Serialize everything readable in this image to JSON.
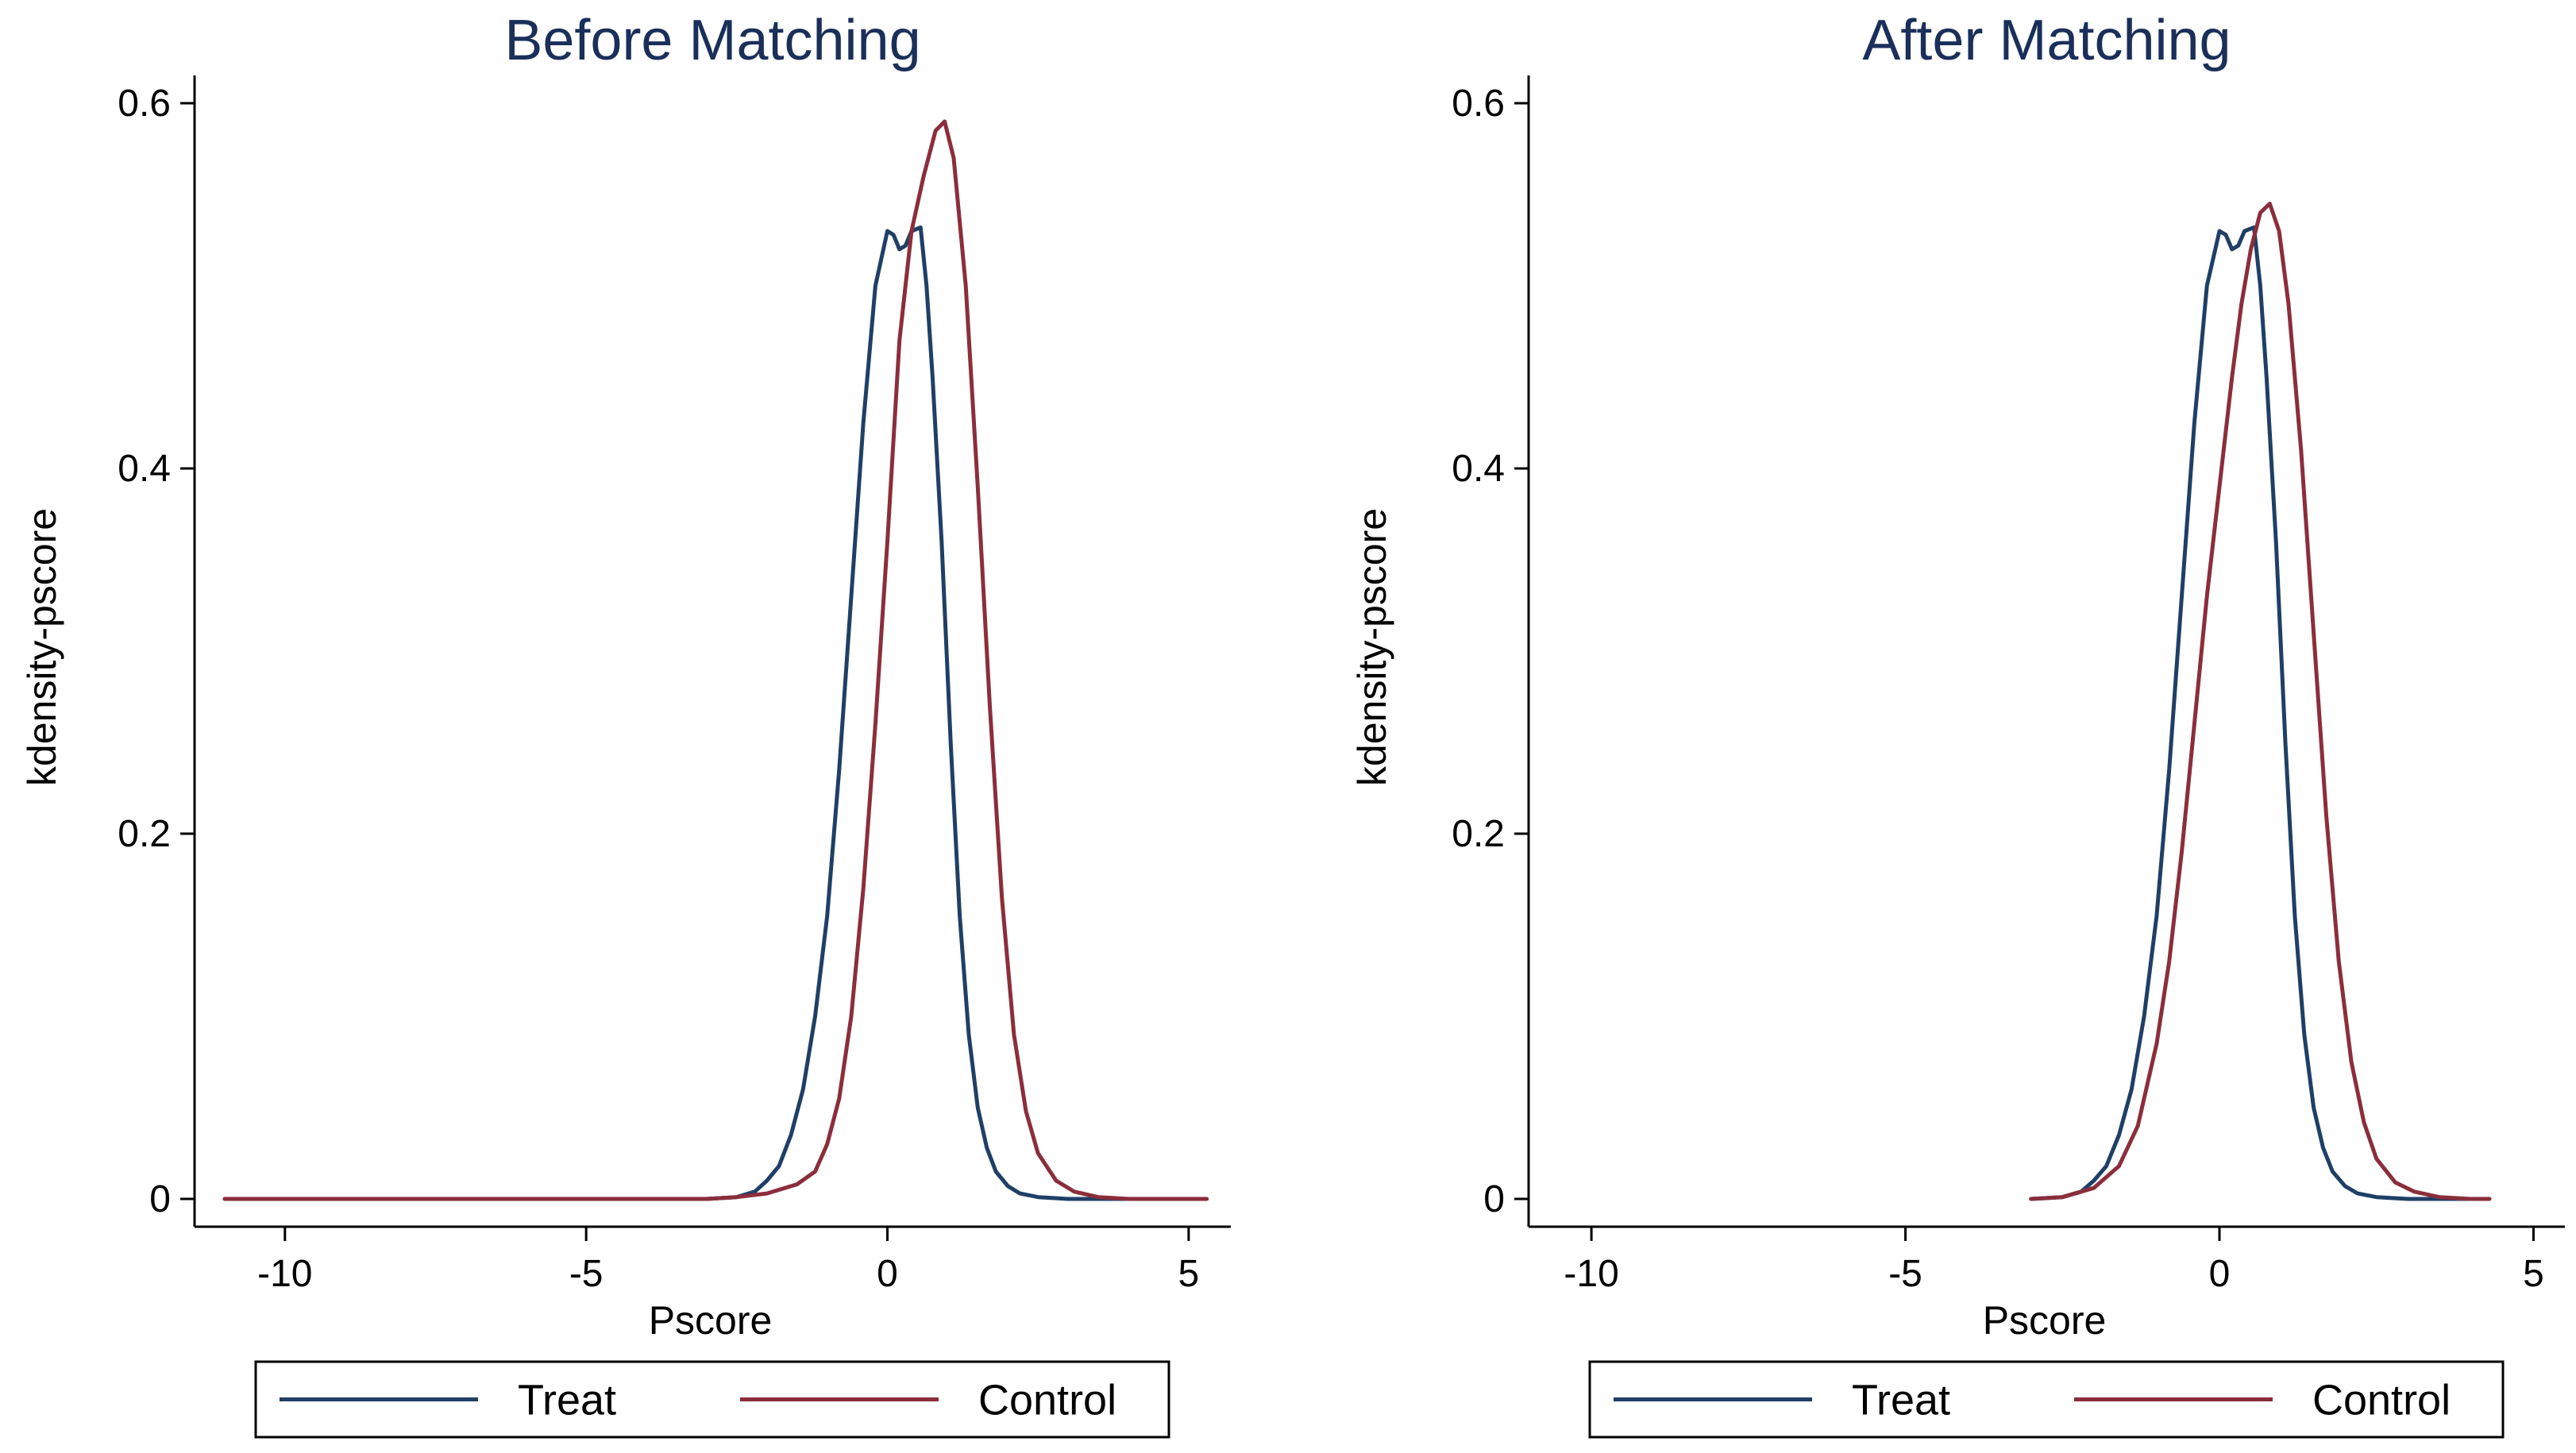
{
  "chart_data": [
    {
      "type": "line",
      "title": "Before Matching",
      "xlabel": "Pscore",
      "ylabel": "kdensity-pscore",
      "xlim": [
        -11.5,
        5.7
      ],
      "ylim": [
        0,
        0.6
      ],
      "xticks": [
        -10,
        -5,
        0,
        5
      ],
      "yticks": [
        0,
        0.2,
        0.4,
        0.6
      ],
      "xtick_labels": [
        "-10",
        "-5",
        "0",
        "5"
      ],
      "ytick_labels": [
        "0",
        "0.2",
        "0.4",
        "0.6"
      ],
      "legend": [
        "Treat",
        "Control"
      ],
      "legend_position": "bottom",
      "series": [
        {
          "name": "Treat",
          "color": "#1f3f66",
          "x": [
            -3.0,
            -2.5,
            -2.2,
            -2.0,
            -1.8,
            -1.6,
            -1.4,
            -1.2,
            -1.0,
            -0.8,
            -0.6,
            -0.4,
            -0.2,
            0.0,
            0.1,
            0.2,
            0.3,
            0.4,
            0.55,
            0.65,
            0.75,
            0.9,
            1.05,
            1.2,
            1.35,
            1.5,
            1.65,
            1.8,
            2.0,
            2.2,
            2.5,
            3.0,
            3.5,
            4.2
          ],
          "y": [
            0.0,
            0.001,
            0.004,
            0.01,
            0.018,
            0.035,
            0.06,
            0.1,
            0.155,
            0.235,
            0.33,
            0.425,
            0.5,
            0.53,
            0.528,
            0.52,
            0.522,
            0.53,
            0.532,
            0.5,
            0.45,
            0.36,
            0.25,
            0.155,
            0.09,
            0.05,
            0.028,
            0.015,
            0.007,
            0.003,
            0.001,
            0.0,
            0.0,
            0.0
          ]
        },
        {
          "name": "Control",
          "color": "#8b2e3b",
          "x": [
            -11.0,
            -9.0,
            -7.0,
            -5.0,
            -3.0,
            -2.5,
            -2.0,
            -1.5,
            -1.2,
            -1.0,
            -0.8,
            -0.6,
            -0.4,
            -0.2,
            0.0,
            0.2,
            0.4,
            0.6,
            0.8,
            0.95,
            1.1,
            1.3,
            1.5,
            1.7,
            1.9,
            2.1,
            2.3,
            2.5,
            2.8,
            3.1,
            3.5,
            4.0,
            4.6,
            5.3
          ],
          "y": [
            0.0,
            0.0,
            0.0,
            0.0,
            0.0,
            0.001,
            0.003,
            0.008,
            0.015,
            0.03,
            0.055,
            0.1,
            0.17,
            0.26,
            0.36,
            0.47,
            0.53,
            0.56,
            0.585,
            0.59,
            0.57,
            0.5,
            0.39,
            0.27,
            0.165,
            0.09,
            0.048,
            0.025,
            0.01,
            0.004,
            0.001,
            0.0,
            0.0,
            0.0
          ]
        }
      ]
    },
    {
      "type": "line",
      "title": "After Matching",
      "xlabel": "Pscore",
      "ylabel": "kdensity-pscore",
      "xlim": [
        -11.0,
        5.5
      ],
      "ylim": [
        0,
        0.6
      ],
      "xticks": [
        -10,
        -5,
        0,
        5
      ],
      "yticks": [
        0,
        0.2,
        0.4,
        0.6
      ],
      "xtick_labels": [
        "-10",
        "-5",
        "0",
        "5"
      ],
      "ytick_labels": [
        "0",
        "0.2",
        "0.4",
        "0.6"
      ],
      "legend": [
        "Treat",
        "Control"
      ],
      "legend_position": "bottom",
      "series": [
        {
          "name": "Treat",
          "color": "#1f3f66",
          "x": [
            -3.0,
            -2.5,
            -2.2,
            -2.0,
            -1.8,
            -1.6,
            -1.4,
            -1.2,
            -1.0,
            -0.8,
            -0.6,
            -0.4,
            -0.2,
            0.0,
            0.1,
            0.2,
            0.3,
            0.4,
            0.55,
            0.65,
            0.75,
            0.9,
            1.05,
            1.2,
            1.35,
            1.5,
            1.65,
            1.8,
            2.0,
            2.2,
            2.5,
            3.0,
            3.5,
            4.2
          ],
          "y": [
            0.0,
            0.001,
            0.004,
            0.01,
            0.018,
            0.035,
            0.06,
            0.1,
            0.155,
            0.235,
            0.33,
            0.425,
            0.5,
            0.53,
            0.528,
            0.52,
            0.522,
            0.53,
            0.532,
            0.5,
            0.45,
            0.36,
            0.25,
            0.155,
            0.09,
            0.05,
            0.028,
            0.015,
            0.007,
            0.003,
            0.001,
            0.0,
            0.0,
            0.0
          ]
        },
        {
          "name": "Control",
          "color": "#8b2e3b",
          "x": [
            -3.0,
            -2.5,
            -2.0,
            -1.6,
            -1.3,
            -1.0,
            -0.8,
            -0.6,
            -0.4,
            -0.2,
            0.0,
            0.2,
            0.35,
            0.5,
            0.65,
            0.8,
            0.95,
            1.1,
            1.3,
            1.5,
            1.7,
            1.9,
            2.1,
            2.3,
            2.5,
            2.8,
            3.1,
            3.5,
            4.0,
            4.3
          ],
          "y": [
            0.0,
            0.001,
            0.006,
            0.018,
            0.04,
            0.085,
            0.13,
            0.19,
            0.26,
            0.33,
            0.39,
            0.45,
            0.49,
            0.52,
            0.54,
            0.545,
            0.53,
            0.49,
            0.41,
            0.31,
            0.21,
            0.13,
            0.075,
            0.042,
            0.022,
            0.009,
            0.004,
            0.001,
            0.0,
            0.0
          ]
        }
      ]
    }
  ]
}
